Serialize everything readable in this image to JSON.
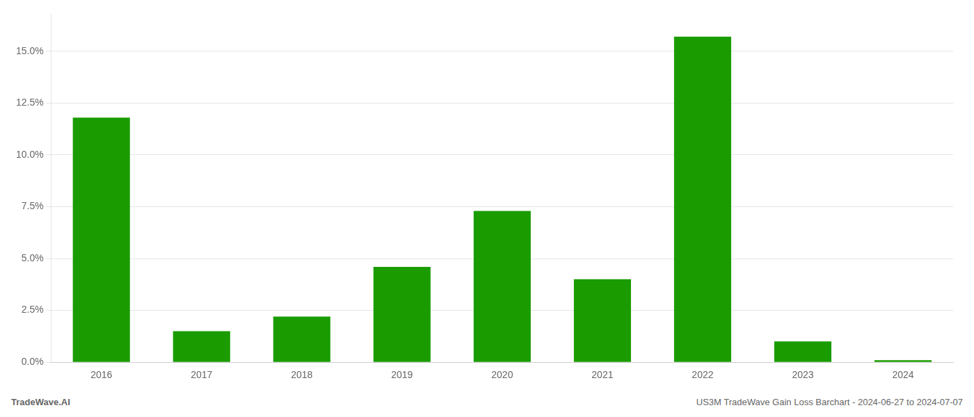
{
  "chart_data": {
    "type": "bar",
    "categories": [
      "2016",
      "2017",
      "2018",
      "2019",
      "2020",
      "2021",
      "2022",
      "2023",
      "2024"
    ],
    "values": [
      0.118,
      0.015,
      0.022,
      0.046,
      0.073,
      0.04,
      0.157,
      0.01,
      0.001
    ],
    "color": "#1a9c00",
    "ylim": [
      0.0,
      0.168
    ],
    "yticks": [
      {
        "value": 0.0,
        "label": "0.0%"
      },
      {
        "value": 0.025,
        "label": "2.5%"
      },
      {
        "value": 0.05,
        "label": "5.0%"
      },
      {
        "value": 0.075,
        "label": "7.5%"
      },
      {
        "value": 0.1,
        "label": "10.0%"
      },
      {
        "value": 0.125,
        "label": "12.5%"
      },
      {
        "value": 0.15,
        "label": "15.0%"
      }
    ],
    "grid": true,
    "annotations": [
      "TradeWave.AI",
      "US3M TradeWave Gain Loss Barchart - 2024-06-27 to 2024-07-07"
    ]
  }
}
